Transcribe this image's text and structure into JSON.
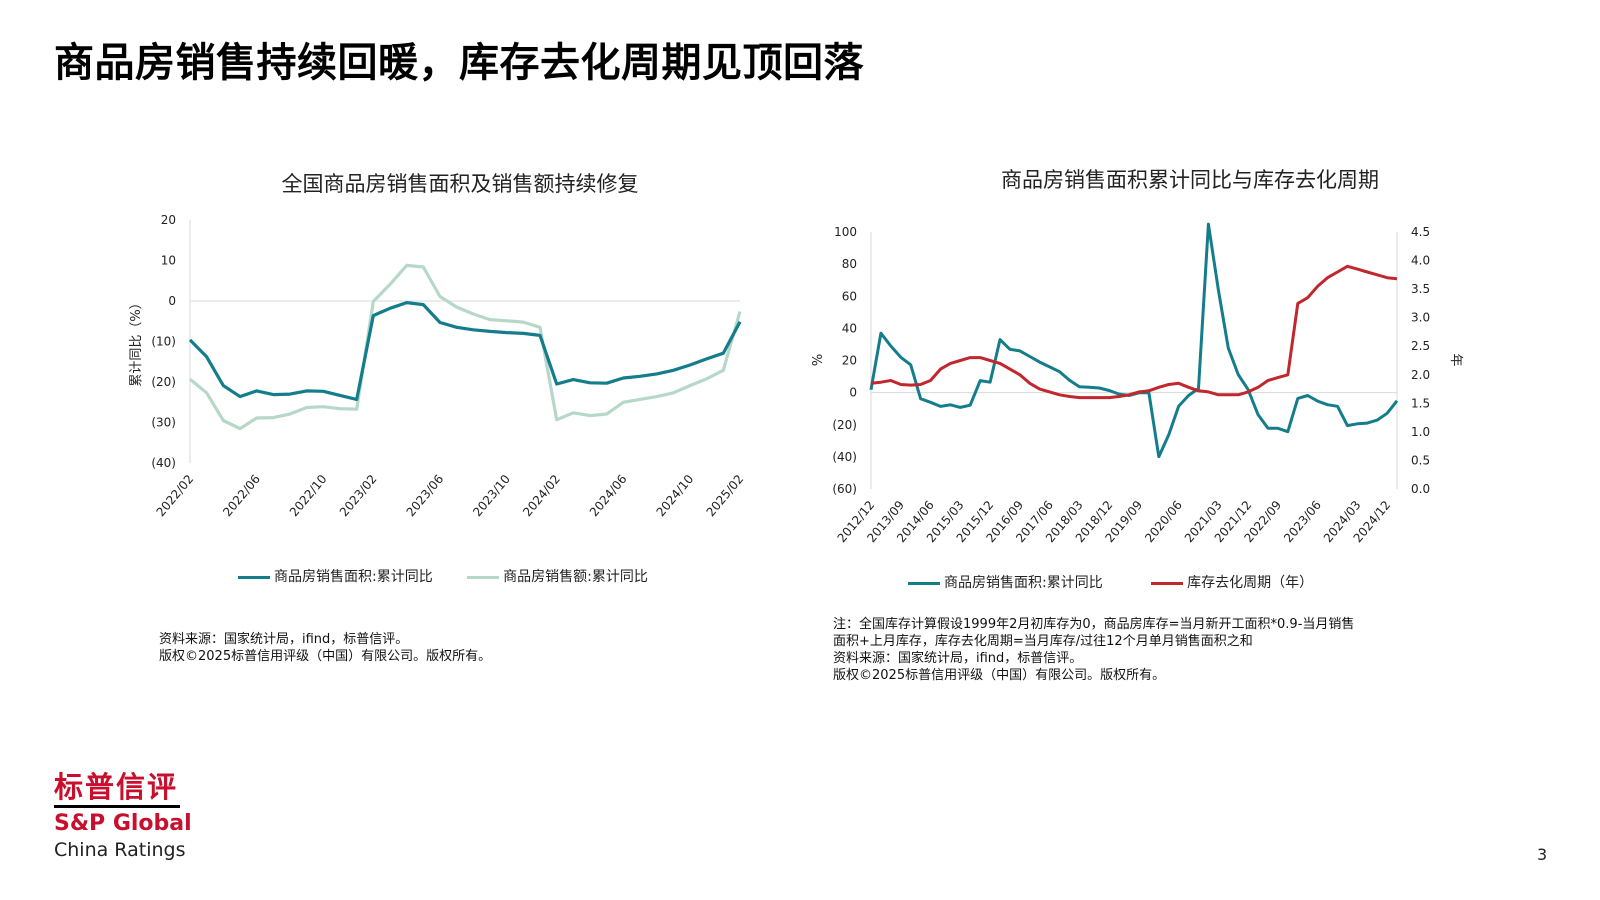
{
  "slide": {
    "title": "商品房销售持续回暖，库存去化周期见顶回落",
    "page_number": "3"
  },
  "left_chart_labels": {
    "title": "全国商品房销售面积及销售额持续修复",
    "ylabel": "累计同比（%）",
    "legend1": "商品房销售面积:累计同比",
    "legend2": "商品房销售额:累计同比"
  },
  "right_chart_labels": {
    "title": "商品房销售面积累计同比与库存去化周期",
    "ylabel_left": "%",
    "ylabel_right": "年",
    "legend1": "商品房销售面积:累计同比",
    "legend2": "库存去化周期（年）"
  },
  "notes": {
    "left_source": "资料来源：国家统计局，ifind，标普信评。",
    "left_copyright": "版权©2025标普信用评级（中国）有限公司。版权所有。",
    "right_note1": "注：全国库存计算假设1999年2月初库存为0，商品房库存=当月新开工面积*0.9-当月销售",
    "right_note2": "面积+上月库存，库存去化周期=当月库存/过往12个月单月销售面积之和",
    "right_source": "资料来源：国家统计局，ifind，标普信评。",
    "right_copyright": "版权©2025标普信用评级（中国）有限公司。版权所有。"
  },
  "logo": {
    "cn": "标普信评",
    "brand": "S&P Global",
    "sub": "China Ratings"
  },
  "colors": {
    "teal": "#137d8c",
    "light_green": "#b6d8c8",
    "red": "#c1272d",
    "axis": "#d9d9d9"
  },
  "chart_data": [
    {
      "type": "line",
      "title": "全国商品房销售面积及销售额持续修复",
      "ylabel": "累计同比（%）",
      "ylim": [
        -40,
        20
      ],
      "yticks": [
        "20",
        "10",
        "0",
        "(10)",
        "(20)",
        "(30)",
        "(40)"
      ],
      "x_tick_labels": [
        "2022/02",
        "2022/06",
        "2022/10",
        "2023/02",
        "2023/06",
        "2023/10",
        "2024/02",
        "2024/06",
        "2024/10",
        "2025/02"
      ],
      "x": [
        "2022/02",
        "2022/03",
        "2022/04",
        "2022/05",
        "2022/06",
        "2022/07",
        "2022/08",
        "2022/09",
        "2022/10",
        "2022/11",
        "2022/12",
        "2023/02",
        "2023/03",
        "2023/04",
        "2023/05",
        "2023/06",
        "2023/07",
        "2023/08",
        "2023/09",
        "2023/10",
        "2023/11",
        "2023/12",
        "2024/02",
        "2024/03",
        "2024/04",
        "2024/05",
        "2024/06",
        "2024/07",
        "2024/08",
        "2024/09",
        "2024/10",
        "2024/11",
        "2024/12",
        "2025/02"
      ],
      "series": [
        {
          "name": "商品房销售面积:累计同比",
          "color": "#137d8c",
          "values": [
            -9.6,
            -13.8,
            -20.9,
            -23.6,
            -22.2,
            -23.1,
            -23.0,
            -22.2,
            -22.3,
            -23.3,
            -24.3,
            -3.6,
            -1.8,
            -0.4,
            -0.9,
            -5.3,
            -6.5,
            -7.1,
            -7.5,
            -7.8,
            -8.0,
            -8.5,
            -20.5,
            -19.4,
            -20.2,
            -20.3,
            -19.0,
            -18.6,
            -18.0,
            -17.1,
            -15.8,
            -14.3,
            -12.9,
            -5.1
          ]
        },
        {
          "name": "商品房销售额:累计同比",
          "color": "#b6d8c8",
          "values": [
            -19.3,
            -22.7,
            -29.5,
            -31.5,
            -28.9,
            -28.8,
            -27.9,
            -26.3,
            -26.1,
            -26.6,
            -26.7,
            -0.1,
            4.1,
            8.8,
            8.4,
            1.1,
            -1.5,
            -3.2,
            -4.6,
            -4.9,
            -5.2,
            -6.5,
            -29.3,
            -27.6,
            -28.3,
            -27.9,
            -25.0,
            -24.3,
            -23.6,
            -22.7,
            -20.9,
            -19.2,
            -17.1,
            -2.6
          ]
        }
      ]
    },
    {
      "type": "line",
      "title": "商品房销售面积累计同比与库存去化周期",
      "ylabel_left": "%",
      "ylabel_right": "年",
      "ylim_left": [
        -60,
        100
      ],
      "ylim_right": [
        0,
        4.5
      ],
      "yticks_left": [
        "100",
        "80",
        "60",
        "40",
        "20",
        "0",
        "(20)",
        "(40)",
        "(60)"
      ],
      "yticks_right": [
        "4.5",
        "4.0",
        "3.5",
        "3.0",
        "2.5",
        "2.0",
        "1.5",
        "1.0",
        "0.5",
        "0.0"
      ],
      "x_tick_labels": [
        "2012/12",
        "2013/09",
        "2014/06",
        "2015/03",
        "2015/12",
        "2016/09",
        "2017/06",
        "2018/03",
        "2018/12",
        "2019/09",
        "2020/06",
        "2021/03",
        "2021/12",
        "2022/09",
        "2023/06",
        "2024/03",
        "2024/12"
      ],
      "x": [
        "2012/12",
        "2013/03",
        "2013/06",
        "2013/09",
        "2013/12",
        "2014/03",
        "2014/06",
        "2014/09",
        "2014/12",
        "2015/03",
        "2015/06",
        "2015/09",
        "2015/12",
        "2016/03",
        "2016/06",
        "2016/09",
        "2016/12",
        "2017/03",
        "2017/06",
        "2017/09",
        "2017/12",
        "2018/03",
        "2018/06",
        "2018/09",
        "2018/12",
        "2019/03",
        "2019/06",
        "2019/09",
        "2019/12",
        "2020/02",
        "2020/03",
        "2020/06",
        "2020/09",
        "2020/12",
        "2021/02",
        "2021/03",
        "2021/06",
        "2021/09",
        "2021/12",
        "2022/03",
        "2022/06",
        "2022/09",
        "2022/12",
        "2023/02",
        "2023/03",
        "2023/06",
        "2023/09",
        "2023/12",
        "2024/02",
        "2024/03",
        "2024/06",
        "2024/09",
        "2024/12",
        "2025/02"
      ],
      "series": [
        {
          "name": "商品房销售面积:累计同比",
          "axis": "left",
          "color": "#137d8c",
          "values": [
            1.8,
            37,
            29,
            22,
            17.3,
            -3.8,
            -6,
            -8.6,
            -7.6,
            -9.2,
            -7.8,
            7.5,
            6.5,
            33,
            27,
            26,
            22.5,
            19,
            16,
            13,
            7.7,
            3.6,
            3.3,
            2.9,
            1.3,
            -0.9,
            -1.8,
            -0.1,
            -0.1,
            -39.9,
            -26.3,
            -8.4,
            -1.8,
            2.6,
            104.9,
            63.8,
            27.7,
            11.3,
            1.9,
            -13.8,
            -22.2,
            -22.2,
            -24.3,
            -3.6,
            -1.8,
            -5.3,
            -7.5,
            -8.5,
            -20.5,
            -19.4,
            -19.0,
            -17.1,
            -12.9,
            -5.1
          ]
        },
        {
          "name": "库存去化周期（年）",
          "axis": "right",
          "color": "#c1272d",
          "values": [
            1.85,
            1.87,
            1.9,
            1.83,
            1.82,
            1.83,
            1.9,
            2.1,
            2.2,
            2.25,
            2.3,
            2.3,
            2.25,
            2.2,
            2.1,
            2.0,
            1.85,
            1.75,
            1.7,
            1.65,
            1.62,
            1.6,
            1.6,
            1.6,
            1.6,
            1.62,
            1.65,
            1.7,
            1.72,
            1.78,
            1.83,
            1.85,
            1.78,
            1.72,
            1.7,
            1.65,
            1.65,
            1.65,
            1.7,
            1.78,
            1.9,
            1.95,
            2.0,
            3.25,
            3.35,
            3.55,
            3.7,
            3.8,
            3.9,
            3.85,
            3.8,
            3.75,
            3.7,
            3.68
          ]
        }
      ]
    }
  ]
}
